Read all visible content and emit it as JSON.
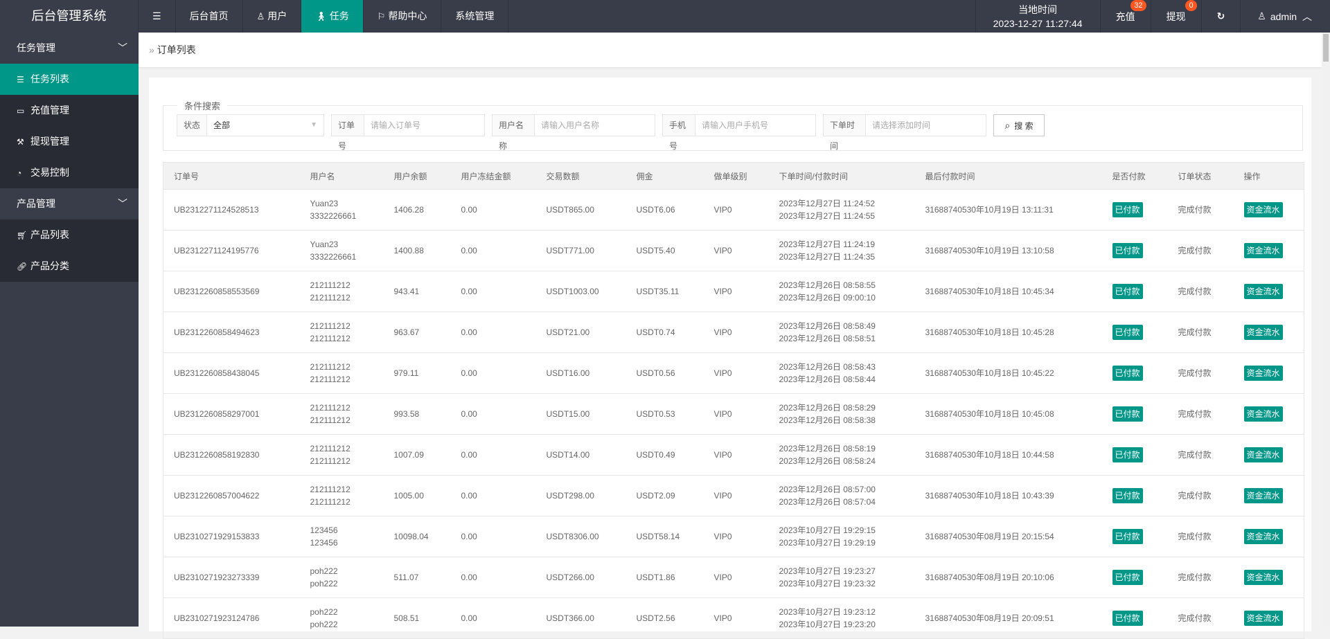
{
  "header": {
    "logo": "后台管理系统",
    "menu_toggle_icon": "menu-fold-icon",
    "nav": [
      {
        "label": "后台首页",
        "icon": ""
      },
      {
        "label": "用户",
        "icon": "user-icon"
      },
      {
        "label": "任务",
        "icon": "walk-icon",
        "active": true
      },
      {
        "label": "帮助中心",
        "icon": "flag-icon"
      },
      {
        "label": "系统管理",
        "icon": ""
      }
    ],
    "clock_label": "当地时间",
    "clock_value": "2023-12-27 11:27:44",
    "recharge": {
      "label": "充值",
      "badge": "32"
    },
    "withdraw": {
      "label": "提现",
      "badge": "0"
    },
    "user": "admin",
    "accent": "#009688",
    "badge_color": "#ff5722"
  },
  "sidebar": {
    "groups": [
      {
        "label": "任务管理",
        "items": [
          {
            "label": "任务列表",
            "icon": "list-icon",
            "active": true
          },
          {
            "label": "充值管理",
            "icon": "desktop-icon"
          },
          {
            "label": "提现管理",
            "icon": "hammer-icon"
          },
          {
            "label": "交易控制",
            "icon": "gauge-icon"
          }
        ]
      },
      {
        "label": "产品管理",
        "items": [
          {
            "label": "产品列表",
            "icon": "cart-icon"
          },
          {
            "label": "产品分类",
            "icon": "link-icon"
          }
        ]
      }
    ]
  },
  "breadcrumb": "订单列表",
  "search": {
    "legend": "条件搜索",
    "status_label": "状态",
    "status_value": "全部",
    "order_label": "订单号",
    "order_placeholder": "请输入订单号",
    "user_label": "用户名称",
    "user_placeholder": "请输入用户名称",
    "phone_label": "手机号",
    "phone_placeholder": "请输入用户手机号",
    "time_label": "下单时间",
    "time_placeholder": "请选择添加时间",
    "button": "搜 索"
  },
  "table": {
    "columns": [
      "订单号",
      "用户名",
      "用户余额",
      "用户冻结金额",
      "交易数额",
      "佣金",
      "做单级别",
      "下单时间/付款时间",
      "最后付款时间",
      "是否付款",
      "订单状态",
      "操作"
    ],
    "rows": [
      {
        "id": "UB2312271124528513",
        "user1": "Yuan23",
        "user2": "3332226661",
        "balance": "1406.28",
        "frozen": "0.00",
        "amount": "USDT865.00",
        "commission": "USDT6.06",
        "level": "VIP0",
        "t1": "2023年12月27日 11:24:52",
        "t2": "2023年12月27日 11:24:55",
        "last": "31688740530年10月19日 13:11:31",
        "paid": "已付款",
        "status": "完成付款",
        "action": "资金流水"
      },
      {
        "id": "UB2312271124195776",
        "user1": "Yuan23",
        "user2": "3332226661",
        "balance": "1400.88",
        "frozen": "0.00",
        "amount": "USDT771.00",
        "commission": "USDT5.40",
        "level": "VIP0",
        "t1": "2023年12月27日 11:24:19",
        "t2": "2023年12月27日 11:24:35",
        "last": "31688740530年10月19日 13:10:58",
        "paid": "已付款",
        "status": "完成付款",
        "action": "资金流水"
      },
      {
        "id": "UB2312260858553569",
        "user1": "212111212",
        "user2": "212111212",
        "balance": "943.41",
        "frozen": "0.00",
        "amount": "USDT1003.00",
        "commission": "USDT35.11",
        "level": "VIP0",
        "t1": "2023年12月26日 08:58:55",
        "t2": "2023年12月26日 09:00:10",
        "last": "31688740530年10月18日 10:45:34",
        "paid": "已付款",
        "status": "完成付款",
        "action": "资金流水"
      },
      {
        "id": "UB2312260858494623",
        "user1": "212111212",
        "user2": "212111212",
        "balance": "963.67",
        "frozen": "0.00",
        "amount": "USDT21.00",
        "commission": "USDT0.74",
        "level": "VIP0",
        "t1": "2023年12月26日 08:58:49",
        "t2": "2023年12月26日 08:58:51",
        "last": "31688740530年10月18日 10:45:28",
        "paid": "已付款",
        "status": "完成付款",
        "action": "资金流水"
      },
      {
        "id": "UB2312260858438045",
        "user1": "212111212",
        "user2": "212111212",
        "balance": "979.11",
        "frozen": "0.00",
        "amount": "USDT16.00",
        "commission": "USDT0.56",
        "level": "VIP0",
        "t1": "2023年12月26日 08:58:43",
        "t2": "2023年12月26日 08:58:44",
        "last": "31688740530年10月18日 10:45:22",
        "paid": "已付款",
        "status": "完成付款",
        "action": "资金流水"
      },
      {
        "id": "UB2312260858297001",
        "user1": "212111212",
        "user2": "212111212",
        "balance": "993.58",
        "frozen": "0.00",
        "amount": "USDT15.00",
        "commission": "USDT0.53",
        "level": "VIP0",
        "t1": "2023年12月26日 08:58:29",
        "t2": "2023年12月26日 08:58:38",
        "last": "31688740530年10月18日 10:45:08",
        "paid": "已付款",
        "status": "完成付款",
        "action": "资金流水"
      },
      {
        "id": "UB2312260858192830",
        "user1": "212111212",
        "user2": "212111212",
        "balance": "1007.09",
        "frozen": "0.00",
        "amount": "USDT14.00",
        "commission": "USDT0.49",
        "level": "VIP0",
        "t1": "2023年12月26日 08:58:19",
        "t2": "2023年12月26日 08:58:24",
        "last": "31688740530年10月18日 10:44:58",
        "paid": "已付款",
        "status": "完成付款",
        "action": "资金流水"
      },
      {
        "id": "UB2312260857004622",
        "user1": "212111212",
        "user2": "212111212",
        "balance": "1005.00",
        "frozen": "0.00",
        "amount": "USDT298.00",
        "commission": "USDT2.09",
        "level": "VIP0",
        "t1": "2023年12月26日 08:57:00",
        "t2": "2023年12月26日 08:57:04",
        "last": "31688740530年10月18日 10:43:39",
        "paid": "已付款",
        "status": "完成付款",
        "action": "资金流水"
      },
      {
        "id": "UB2310271929153833",
        "user1": "123456",
        "user2": "123456",
        "balance": "10098.04",
        "frozen": "0.00",
        "amount": "USDT8306.00",
        "commission": "USDT58.14",
        "level": "VIP0",
        "t1": "2023年10月27日 19:29:15",
        "t2": "2023年10月27日 19:29:19",
        "last": "31688740530年08月19日 20:15:54",
        "paid": "已付款",
        "status": "完成付款",
        "action": "资金流水"
      },
      {
        "id": "UB2310271923273339",
        "user1": "poh222",
        "user2": "poh222",
        "balance": "511.07",
        "frozen": "0.00",
        "amount": "USDT266.00",
        "commission": "USDT1.86",
        "level": "VIP0",
        "t1": "2023年10月27日 19:23:27",
        "t2": "2023年10月27日 19:23:32",
        "last": "31688740530年08月19日 20:10:06",
        "paid": "已付款",
        "status": "完成付款",
        "action": "资金流水"
      },
      {
        "id": "UB2310271923124786",
        "user1": "poh222",
        "user2": "poh222",
        "balance": "508.51",
        "frozen": "0.00",
        "amount": "USDT366.00",
        "commission": "USDT2.56",
        "level": "VIP0",
        "t1": "2023年10月27日 19:23:12",
        "t2": "2023年10月27日 19:23:20",
        "last": "31688740530年08月19日 20:09:51",
        "paid": "已付款",
        "status": "完成付款",
        "action": "资金流水"
      }
    ]
  }
}
